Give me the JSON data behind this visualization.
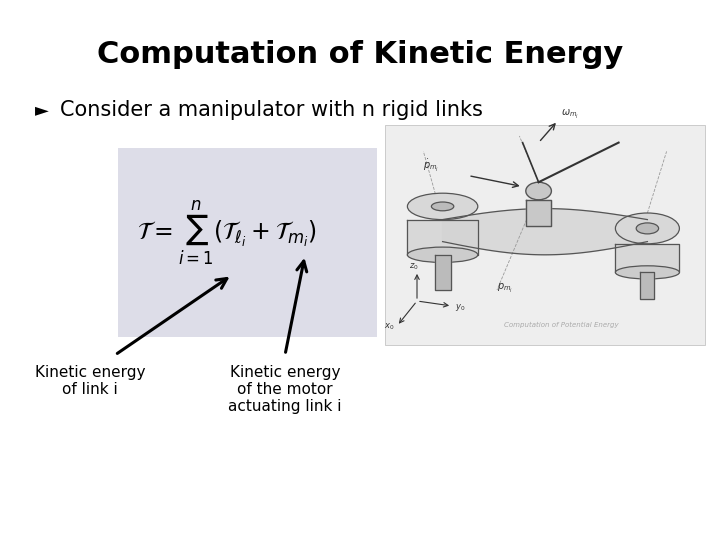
{
  "title": "Computation of Kinetic Energy",
  "title_fontsize": 22,
  "title_fontweight": "bold",
  "bullet_char": "Ø",
  "bullet_text": "Consider a manipulator with n rigid links",
  "bullet_fontsize": 15,
  "formula": "$\\mathcal{T} = \\sum_{i=1}^{n}(\\mathcal{T}_{\\ell_i} + \\mathcal{T}_{m_i})$",
  "formula_fontsize": 17,
  "label1_line1": "Kinetic energy",
  "label1_line2": "of link i",
  "label2_line1": "Kinetic energy",
  "label2_line2": "of the motor",
  "label2_line3": "actuating link i",
  "label_fontsize": 11,
  "bg_color": "#ffffff",
  "text_color": "#000000",
  "formula_box_color": "#dddde8",
  "arrow_color": "#000000",
  "diagram_bg": "#e8e8e8"
}
